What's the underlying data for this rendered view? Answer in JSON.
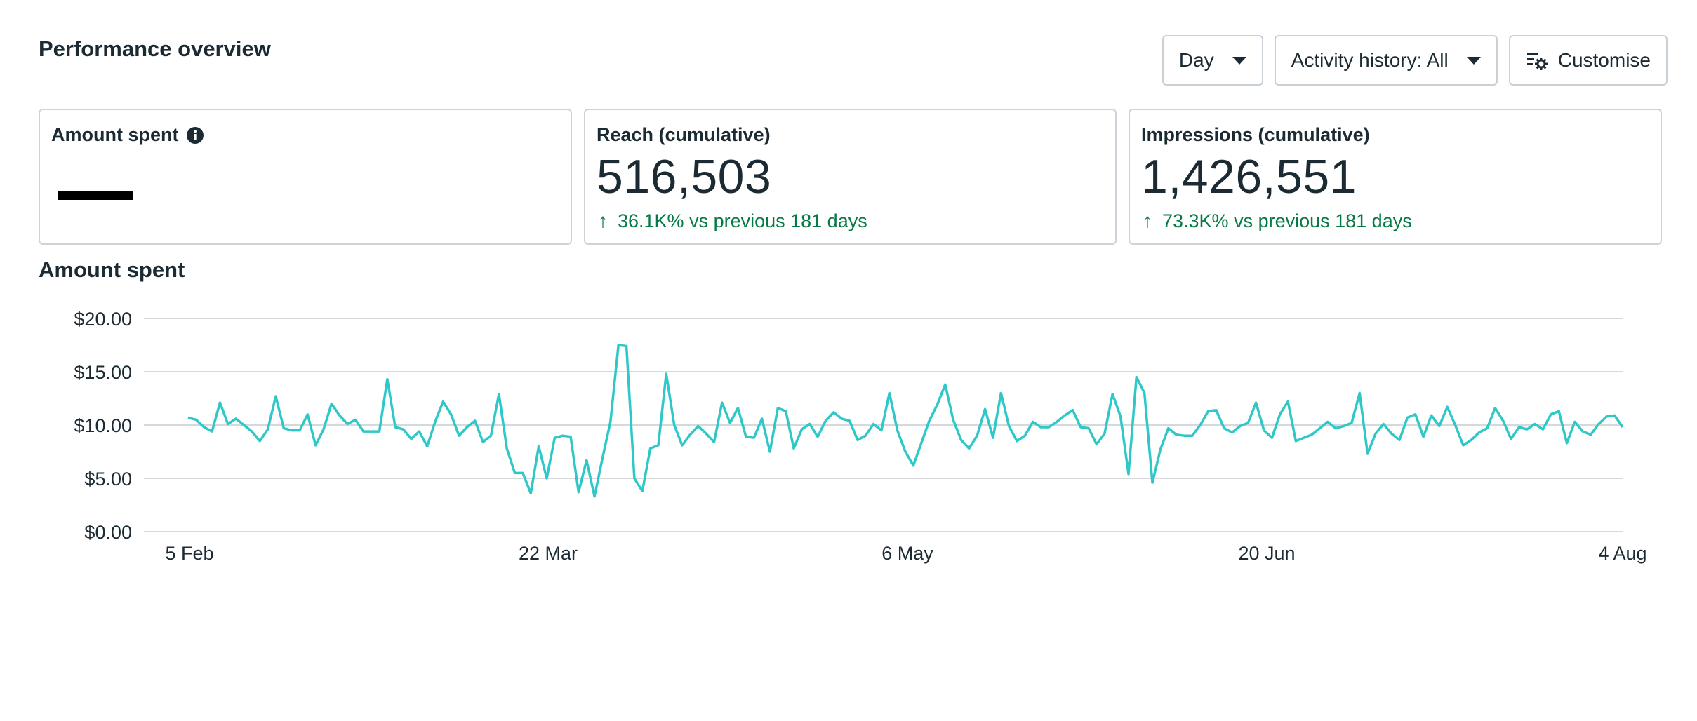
{
  "header": {
    "title": "Performance overview"
  },
  "toolbar": {
    "day_label": "Day",
    "activity_label": "Activity history: All",
    "customise_label": "Customise"
  },
  "cards": [
    {
      "label": "Amount spent",
      "value": "—"
    },
    {
      "label": "Reach (cumulative)",
      "value": "516,503",
      "delta": "36.1K% vs previous 181 days",
      "delta_direction": "up"
    },
    {
      "label": "Impressions (cumulative)",
      "value": "1,426,551",
      "delta": "73.3K% vs previous 181 days",
      "delta_direction": "up"
    }
  ],
  "icons": {
    "info": "info-icon",
    "arrow": "arrow-up-icon",
    "customise": "settings-list-icon",
    "caret": "caret-down-icon"
  },
  "colors": {
    "line": "#2ec8c8",
    "positive": "#067a46",
    "text": "#1c2b33"
  },
  "section": {
    "title": "Amount spent"
  },
  "chart_data": {
    "type": "line",
    "title": "Amount spent",
    "xlabel": "",
    "ylabel": "",
    "ylim": [
      0,
      20
    ],
    "yticks": [
      "$0.00",
      "$5.00",
      "$10.00",
      "$15.00",
      "$20.00"
    ],
    "xticks": [
      "5 Feb",
      "22 Mar",
      "6 May",
      "20 Jun",
      "4 Aug"
    ],
    "x_start": "5 Feb",
    "x_end": "4 Aug",
    "grid": true,
    "legend": "none",
    "series": [
      {
        "values": [
          10.7,
          10.5,
          9.8,
          9.4,
          12.1,
          10.1,
          10.6,
          10.0,
          9.4,
          8.5,
          9.6,
          12.7,
          9.7,
          9.5,
          9.5,
          11.0,
          8.1,
          9.6,
          12.0,
          10.9,
          10.1,
          10.5,
          9.4,
          9.4,
          9.4,
          14.3,
          9.8,
          9.6,
          8.7,
          9.4,
          8.0,
          10.3,
          12.2,
          11.0,
          9.0,
          9.8,
          10.4,
          8.4,
          9.0,
          12.9,
          7.8,
          5.5,
          5.5,
          3.6,
          8.0,
          5.0,
          8.8,
          9.0,
          8.9,
          3.7,
          6.7,
          3.3,
          6.9,
          10.3,
          17.5,
          17.4,
          5.0,
          3.8,
          7.8,
          8.1,
          14.8,
          10.0,
          8.1,
          9.1,
          9.9,
          9.2,
          8.4,
          12.1,
          10.2,
          11.6,
          8.9,
          8.8,
          10.6,
          7.5,
          11.6,
          11.3,
          7.8,
          9.6,
          10.1,
          8.9,
          10.4,
          11.2,
          10.6,
          10.4,
          8.6,
          9.0,
          10.1,
          9.5,
          13.0,
          9.5,
          7.5,
          6.2,
          8.3,
          10.4,
          11.9,
          13.8,
          10.5,
          8.6,
          7.8,
          9.0,
          11.5,
          8.8,
          13.0,
          9.9,
          8.5,
          9.0,
          10.3,
          9.8,
          9.8,
          10.3,
          10.9,
          11.4,
          9.8,
          9.7,
          8.2,
          9.2,
          12.9,
          10.8,
          5.4,
          14.5,
          13.0,
          4.6,
          7.7,
          9.7,
          9.1,
          9.0,
          9.0,
          10.0,
          11.3,
          11.4,
          9.7,
          9.3,
          9.9,
          10.2,
          12.1,
          9.5,
          8.8,
          11.0,
          12.2,
          8.5,
          8.8,
          9.1,
          9.7,
          10.3,
          9.7,
          9.9,
          10.2,
          13.0,
          7.3,
          9.2,
          10.1,
          9.2,
          8.6,
          10.7,
          11.0,
          8.9,
          10.9,
          9.9,
          11.7,
          10.0,
          8.1,
          8.6,
          9.3,
          9.7,
          11.6,
          10.4,
          8.7,
          9.8,
          9.6,
          10.1,
          9.6,
          11.0,
          11.3,
          8.3,
          10.3,
          9.4,
          9.1,
          10.1,
          10.8,
          10.9,
          9.8
        ]
      }
    ]
  }
}
